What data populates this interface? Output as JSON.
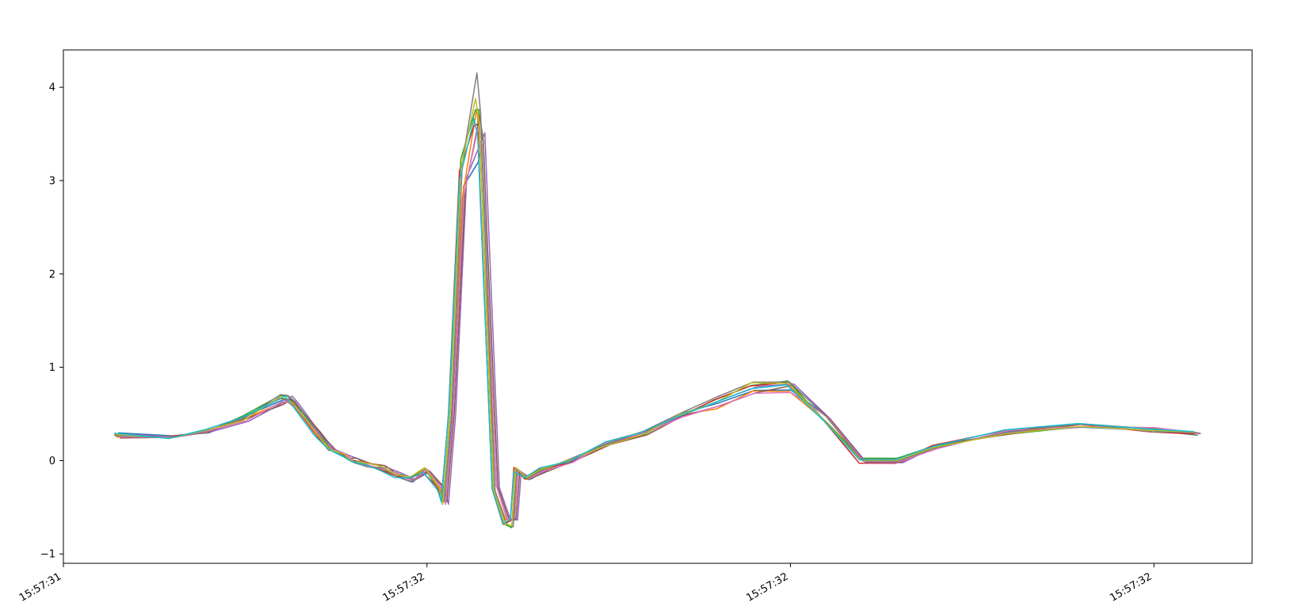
{
  "chart_data": {
    "type": "line",
    "title": "",
    "xlabel": "",
    "ylabel": "",
    "xlim": [
      0,
      1.635
    ],
    "ylim": [
      -1.1,
      4.4
    ],
    "grid": false,
    "legend": "none",
    "x_ticks": [
      {
        "value": 0.0,
        "label": "15:57:31"
      },
      {
        "value": 0.5,
        "label": "15:57:32"
      },
      {
        "value": 1.0,
        "label": "15:57:32"
      },
      {
        "value": 1.5,
        "label": "15:57:32"
      }
    ],
    "y_ticks": [
      {
        "value": -1,
        "label": "−1"
      },
      {
        "value": 0,
        "label": "0"
      },
      {
        "value": 1,
        "label": "1"
      },
      {
        "value": 2,
        "label": "2"
      },
      {
        "value": 3,
        "label": "3"
      },
      {
        "value": 4,
        "label": "4"
      }
    ],
    "x_range_data": [
      0.075,
      1.56
    ],
    "num_series": 10,
    "series_colors": [
      "#1f77b4",
      "#ff7f0e",
      "#2ca02c",
      "#d62728",
      "#9467bd",
      "#8c564b",
      "#e377c2",
      "#7f7f7f",
      "#bcbd22",
      "#17becf"
    ],
    "template": {
      "x": [
        0.075,
        0.15,
        0.2,
        0.25,
        0.3,
        0.31,
        0.32,
        0.35,
        0.37,
        0.39,
        0.4,
        0.42,
        0.44,
        0.46,
        0.48,
        0.5,
        0.52,
        0.525,
        0.535,
        0.55,
        0.57,
        0.575,
        0.58,
        0.595,
        0.61,
        0.62,
        0.625,
        0.64,
        0.66,
        0.7,
        0.75,
        0.8,
        0.85,
        0.9,
        0.95,
        1.0,
        1.05,
        1.1,
        1.15,
        1.2,
        1.3,
        1.4,
        1.5,
        1.56
      ],
      "y": [
        0.27,
        0.25,
        0.32,
        0.45,
        0.65,
        0.66,
        0.6,
        0.3,
        0.1,
        0.05,
        0.0,
        -0.05,
        -0.08,
        -0.15,
        -0.2,
        -0.1,
        -0.3,
        -0.45,
        0.5,
        3.0,
        3.8,
        3.5,
        2.5,
        -0.3,
        -0.65,
        -0.65,
        -0.1,
        -0.2,
        -0.1,
        0.0,
        0.18,
        0.3,
        0.48,
        0.62,
        0.78,
        0.8,
        0.45,
        0.0,
        0.0,
        0.15,
        0.3,
        0.38,
        0.33,
        0.3
      ]
    },
    "series_peaks": [
      3.2,
      3.8,
      3.75,
      3.6,
      3.4,
      3.7,
      3.55,
      4.15,
      3.9,
      3.65
    ]
  }
}
